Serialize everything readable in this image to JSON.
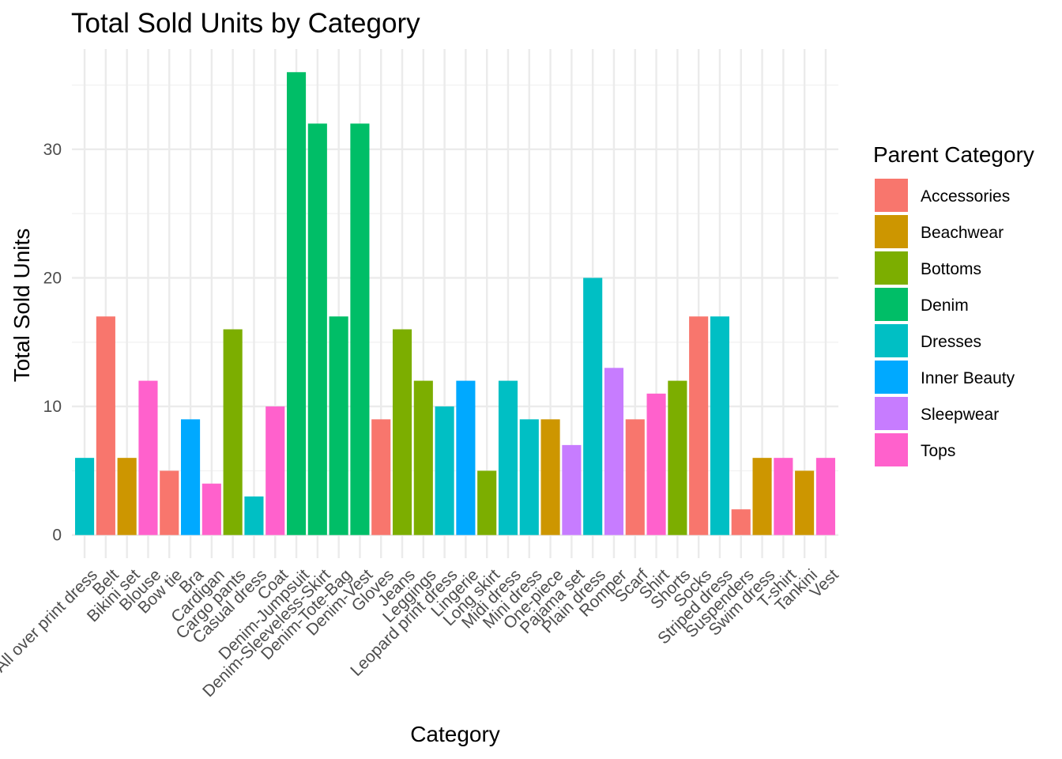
{
  "chart_data": {
    "type": "bar",
    "title": "Total Sold Units by Category",
    "xlabel": "Category",
    "ylabel": "Total Sold Units",
    "ylim": [
      -1.8,
      37.8
    ],
    "yticks": [
      0,
      10,
      20,
      30
    ],
    "grid": true,
    "legend": {
      "title": "Parent Category",
      "position": "right",
      "entries": [
        {
          "name": "Accessories",
          "color": "#F8766D"
        },
        {
          "name": "Beachwear",
          "color": "#CD9600"
        },
        {
          "name": "Bottoms",
          "color": "#7CAE00"
        },
        {
          "name": "Denim",
          "color": "#00BE67"
        },
        {
          "name": "Dresses",
          "color": "#00BFC4"
        },
        {
          "name": "Inner Beauty",
          "color": "#00A9FF"
        },
        {
          "name": "Sleepwear",
          "color": "#C77CFF"
        },
        {
          "name": "Tops",
          "color": "#FF61CC"
        }
      ]
    },
    "categories": [
      "All over print dress",
      "Belt",
      "Bikini set",
      "Blouse",
      "Bow tie",
      "Bra",
      "Cardigan",
      "Cargo pants",
      "Casual dress",
      "Coat",
      "Denim-Jumpsuit",
      "Denim-Sleeveless-Skirt",
      "Denim-Tote-Bag",
      "Denim-Vest",
      "Gloves",
      "Jeans",
      "Leggings",
      "Leopard print dress",
      "Lingerie",
      "Long skirt",
      "Midi dress",
      "Mini dress",
      "One-piece",
      "Pajama set",
      "Plain dress",
      "Romper",
      "Scarf",
      "Shirt",
      "Shorts",
      "Socks",
      "Striped dress",
      "Suspenders",
      "Swim dress",
      "T-shirt",
      "Tankini",
      "Vest"
    ],
    "values": [
      6,
      17,
      6,
      12,
      5,
      9,
      4,
      16,
      3,
      10,
      36,
      32,
      17,
      32,
      9,
      16,
      12,
      10,
      12,
      5,
      12,
      9,
      9,
      7,
      20,
      13,
      9,
      11,
      12,
      17,
      17,
      2,
      6,
      6,
      5,
      6
    ],
    "parent": [
      "Dresses",
      "Accessories",
      "Beachwear",
      "Tops",
      "Accessories",
      "Inner Beauty",
      "Tops",
      "Bottoms",
      "Dresses",
      "Tops",
      "Denim",
      "Denim",
      "Denim",
      "Denim",
      "Accessories",
      "Bottoms",
      "Bottoms",
      "Dresses",
      "Inner Beauty",
      "Bottoms",
      "Dresses",
      "Dresses",
      "Beachwear",
      "Sleepwear",
      "Dresses",
      "Sleepwear",
      "Accessories",
      "Tops",
      "Bottoms",
      "Accessories",
      "Dresses",
      "Accessories",
      "Beachwear",
      "Tops",
      "Beachwear",
      "Tops"
    ]
  }
}
